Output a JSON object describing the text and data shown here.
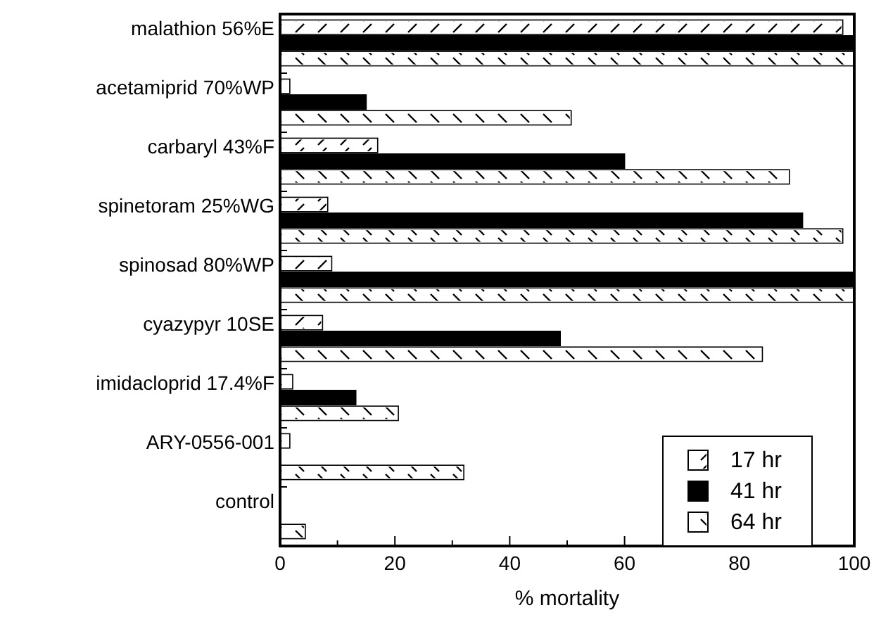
{
  "chart_data": {
    "type": "bar",
    "orientation": "horizontal",
    "xlabel": "% mortality",
    "categories": [
      "malathion 56%E",
      "acetamiprid 70%WP",
      "carbaryl 43%F",
      "spinetoram 25%WG",
      "spinosad 80%WP",
      "cyazypyr 10SE",
      "imidacloprid 17.4%F",
      "ARY-0556-001",
      "control"
    ],
    "series": [
      {
        "name": "17 hr",
        "color": "#ffffff",
        "values": [
          98,
          1.7,
          17,
          8.3,
          9,
          7.4,
          2.2,
          1.7,
          0
        ]
      },
      {
        "name": "41 hr",
        "color": "#000000",
        "values": [
          100,
          15,
          60,
          91,
          100,
          48.8,
          13.2,
          0,
          0
        ]
      },
      {
        "name": "64 hr",
        "color": "#ffffff",
        "values": [
          100,
          50.7,
          88.7,
          98,
          100,
          84,
          20.6,
          32,
          4.4
        ]
      }
    ],
    "xlim": [
      0,
      100
    ],
    "xticks": [
      0,
      {
        "value": 10,
        "label": null
      },
      20,
      {
        "value": 30,
        "label": null
      },
      40,
      {
        "value": 50,
        "label": null
      },
      60,
      {
        "value": 70,
        "label": null
      },
      80,
      {
        "value": 90,
        "label": null
      },
      100
    ],
    "legend": "bottom right",
    "grid": false
  }
}
